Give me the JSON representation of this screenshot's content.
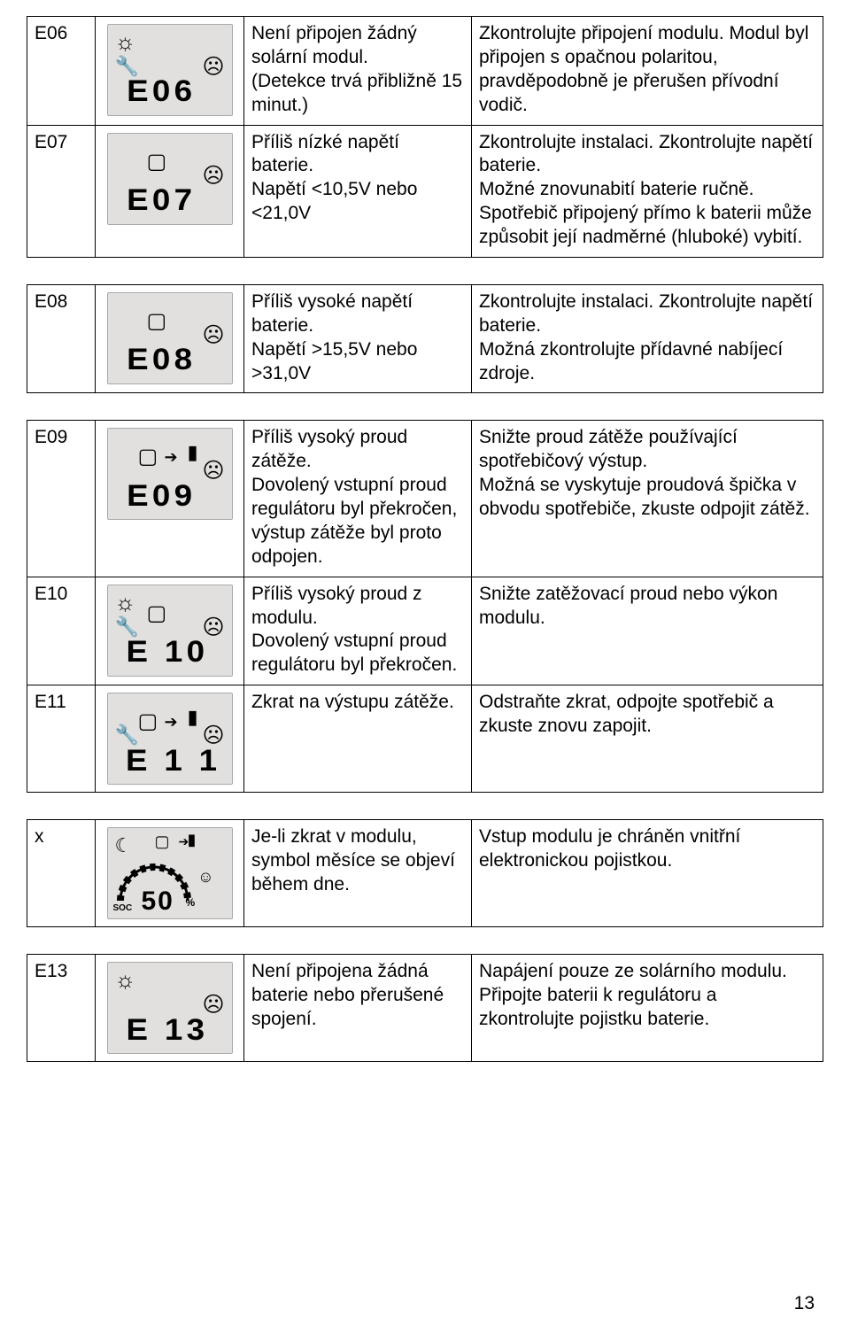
{
  "page_number": "13",
  "rows": [
    {
      "code": "E06",
      "display": "E06",
      "icons": {
        "sun": true,
        "wrench": true,
        "batt": false,
        "arrow": false,
        "bulb": false,
        "sad": true
      },
      "cause": "Není připojen žádný solární modul.\n(Detekce trvá přibližně 15 minut.)",
      "remedy": "Zkontrolujte připojení modulu. Modul byl připojen s opačnou polaritou, pravděpodobně je přerušen přívodní vodič."
    },
    {
      "code": "E07",
      "display": "E07",
      "icons": {
        "sun": false,
        "wrench": false,
        "batt": true,
        "arrow": false,
        "bulb": false,
        "sad": true
      },
      "cause": "Příliš nízké napětí baterie.\nNapětí <10,5V nebo <21,0V",
      "remedy": "Zkontrolujte instalaci. Zkontrolujte napětí baterie.\nMožné znovunabití baterie ručně. Spotřebič připojený přímo k baterii může způsobit její nadměrné (hluboké) vybití."
    },
    {
      "code": "E08",
      "display": "E08",
      "icons": {
        "sun": false,
        "wrench": false,
        "batt": true,
        "arrow": false,
        "bulb": false,
        "sad": true
      },
      "cause": "Příliš vysoké napětí baterie.\nNapětí >15,5V nebo >31,0V",
      "remedy": "Zkontrolujte instalaci. Zkontrolujte napětí baterie.\nMožná zkontrolujte přídavné nabíjecí zdroje."
    },
    {
      "code": "E09",
      "display": "E09",
      "icons": {
        "sun": false,
        "wrench": false,
        "batt": true,
        "arrow": true,
        "bulb": true,
        "sad": true
      },
      "cause": "Příliš vysoký proud zátěže.\nDovolený vstupní proud regulátoru byl překročen, výstup zátěže byl proto odpojen.",
      "remedy": "Snižte proud zátěže používající spotřebičový výstup.\nMožná se vyskytuje proudová špička v obvodu spotřebiče, zkuste odpojit zátěž."
    },
    {
      "code": "E10",
      "display": "E 10",
      "icons": {
        "sun": true,
        "wrench": true,
        "batt": true,
        "arrow": false,
        "bulb": false,
        "sad": true
      },
      "cause": "Příliš vysoký proud z modulu.\nDovolený vstupní proud regulátoru byl překročen.",
      "remedy": "Snižte zatěžovací proud nebo výkon modulu."
    },
    {
      "code": "E11",
      "display": "E 1 1",
      "icons": {
        "sun": false,
        "wrench": true,
        "batt": true,
        "arrow": true,
        "bulb": true,
        "sad": true
      },
      "cause": "Zkrat na výstupu zátěže.",
      "remedy": "Odstraňte zkrat, odpojte spotřebič a zkuste znovu zapojit."
    },
    {
      "code": "x",
      "display": "50",
      "special": "soc",
      "icons": {},
      "cause": "Je-li zkrat v modulu, symbol měsíce se objeví během dne.",
      "remedy": "Vstup modulu je chráněn vnitřní elektronickou pojistkou."
    },
    {
      "code": "E13",
      "display": "E 13",
      "icons": {
        "sun": true,
        "wrench": false,
        "batt": false,
        "arrow": false,
        "bulb": false,
        "sad": true
      },
      "cause": "Není připojena žádná baterie nebo přerušené spojení.",
      "remedy": "Napájení pouze ze solárního modulu. Připojte baterii k regulátoru a zkontrolujte pojistku baterie."
    }
  ],
  "groups": [
    [
      0,
      1
    ],
    [
      2
    ],
    [
      3,
      4,
      5
    ],
    [
      6
    ],
    [
      7
    ]
  ]
}
